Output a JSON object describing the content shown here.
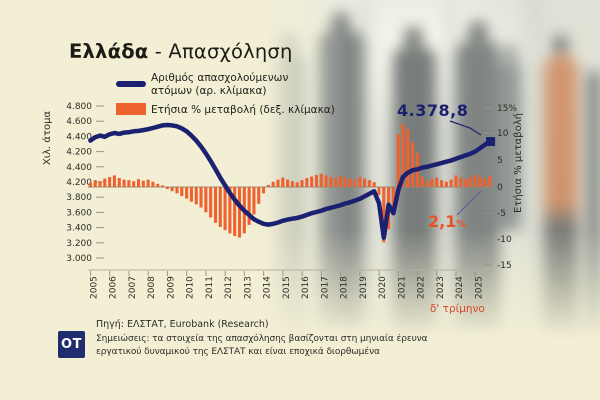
{
  "title": {
    "bold": "Ελλάδα",
    "rest": " - Απασχόληση"
  },
  "legend": {
    "items": [
      {
        "label": "Αριθμός απασχολούμενων ατόμων (αρ. κλίμακα)",
        "swatch": "line"
      },
      {
        "label": "Ετήσια % μεταβολή (δεξ. κλίμακα)",
        "swatch": "bar"
      }
    ]
  },
  "left_axis": {
    "title": "Χιλ. άτομα",
    "labels": [
      "4.800",
      "4.600",
      "4.400",
      "4.200",
      "4.400",
      "4.200",
      "3.800",
      "3.600",
      "3.400",
      "3.200",
      "3.000"
    ]
  },
  "right_axis": {
    "title": "Ετήσια % μεταβολή",
    "labels": [
      "15%",
      "10",
      "5",
      "0",
      "-5",
      "-10",
      "-15"
    ]
  },
  "annotations": {
    "line_value": "4.378,8",
    "bar_value": "2,1",
    "bar_value_suffix": "%",
    "x_note": "δ' τρίμηνο"
  },
  "footer": {
    "logo": "OT",
    "source": "Πηγή: ΕΛΣΤΑΤ, Eurobank (Research)",
    "notes": "Σημειώσεις: τα στοιχεία της απασχόλησης βασίζονται στη μηνιαία έρευνα εργατικού δυναμικού της ΕΛΣΤΑΤ και είναι εποχικά διορθωμένα"
  },
  "colors": {
    "line": "#1b2170",
    "bar": "#ee6230",
    "accent_red": "#d64a2a",
    "background": "#f2efd4",
    "logo_bg": "#1f2d6e",
    "axis_gray": "#98968a"
  },
  "chart_data": {
    "type": "combo",
    "title": "Ελλάδα - Απασχόληση",
    "x_years": [
      2005,
      2006,
      2007,
      2008,
      2009,
      2010,
      2011,
      2012,
      2013,
      2014,
      2015,
      2016,
      2017,
      2018,
      2019,
      2020,
      2021,
      2022,
      2023,
      2024,
      2025
    ],
    "frequency": "quarterly",
    "left_ylim": [
      3000,
      4800
    ],
    "right_ylim": [
      -15,
      15
    ],
    "legend_position": "top",
    "grid": "zero-line-only",
    "series": [
      {
        "name": "Αριθμός απασχολούμενων ατόμων",
        "type": "line",
        "axis": "left",
        "unit": "χιλ. άτομα",
        "values": [
          4390,
          4430,
          4450,
          4435,
          4465,
          4480,
          4470,
          4485,
          4490,
          4500,
          4505,
          4515,
          4525,
          4540,
          4555,
          4570,
          4575,
          4570,
          4560,
          4535,
          4500,
          4450,
          4390,
          4320,
          4240,
          4150,
          4050,
          3950,
          3860,
          3770,
          3690,
          3620,
          3560,
          3510,
          3460,
          3430,
          3405,
          3395,
          3405,
          3420,
          3440,
          3455,
          3465,
          3475,
          3490,
          3510,
          3530,
          3545,
          3560,
          3580,
          3595,
          3610,
          3625,
          3645,
          3660,
          3680,
          3700,
          3730,
          3760,
          3790,
          3650,
          3240,
          3630,
          3530,
          3800,
          3960,
          4010,
          4040,
          4050,
          4070,
          4080,
          4095,
          4110,
          4125,
          4140,
          4155,
          4175,
          4195,
          4215,
          4235,
          4260,
          4300,
          4340,
          4378.8
        ]
      },
      {
        "name": "Ετήσια % μεταβολή",
        "type": "bar",
        "axis": "right",
        "unit": "%",
        "values": [
          0.8,
          1.3,
          1.1,
          1.6,
          1.9,
          2.2,
          1.7,
          1.4,
          1.3,
          1.1,
          1.5,
          1.2,
          1.4,
          1.0,
          0.6,
          0.3,
          -0.4,
          -0.8,
          -1.2,
          -1.7,
          -2.2,
          -2.8,
          -3.3,
          -3.9,
          -4.8,
          -5.8,
          -6.8,
          -7.6,
          -8.2,
          -8.8,
          -9.3,
          -9.6,
          -8.8,
          -7.2,
          -5.2,
          -3.2,
          -1.2,
          0.4,
          1.0,
          1.4,
          1.8,
          1.4,
          1.1,
          0.9,
          1.3,
          1.7,
          2.0,
          2.3,
          2.5,
          2.2,
          1.9,
          1.6,
          2.1,
          1.8,
          1.6,
          1.4,
          1.9,
          1.6,
          1.3,
          0.9,
          -1.5,
          -10.5,
          -8.0,
          -4.5,
          10.0,
          12.0,
          11.0,
          8.5,
          6.5,
          2.0,
          1.2,
          1.5,
          1.8,
          1.3,
          1.0,
          1.4,
          2.2,
          1.8,
          1.5,
          1.9,
          2.3,
          1.9,
          1.6,
          2.1
        ]
      }
    ],
    "last_point": {
      "employment_thousands": "4.378,8",
      "yoy_pct": "2,1%",
      "period": "δ' τρίμηνο"
    }
  }
}
